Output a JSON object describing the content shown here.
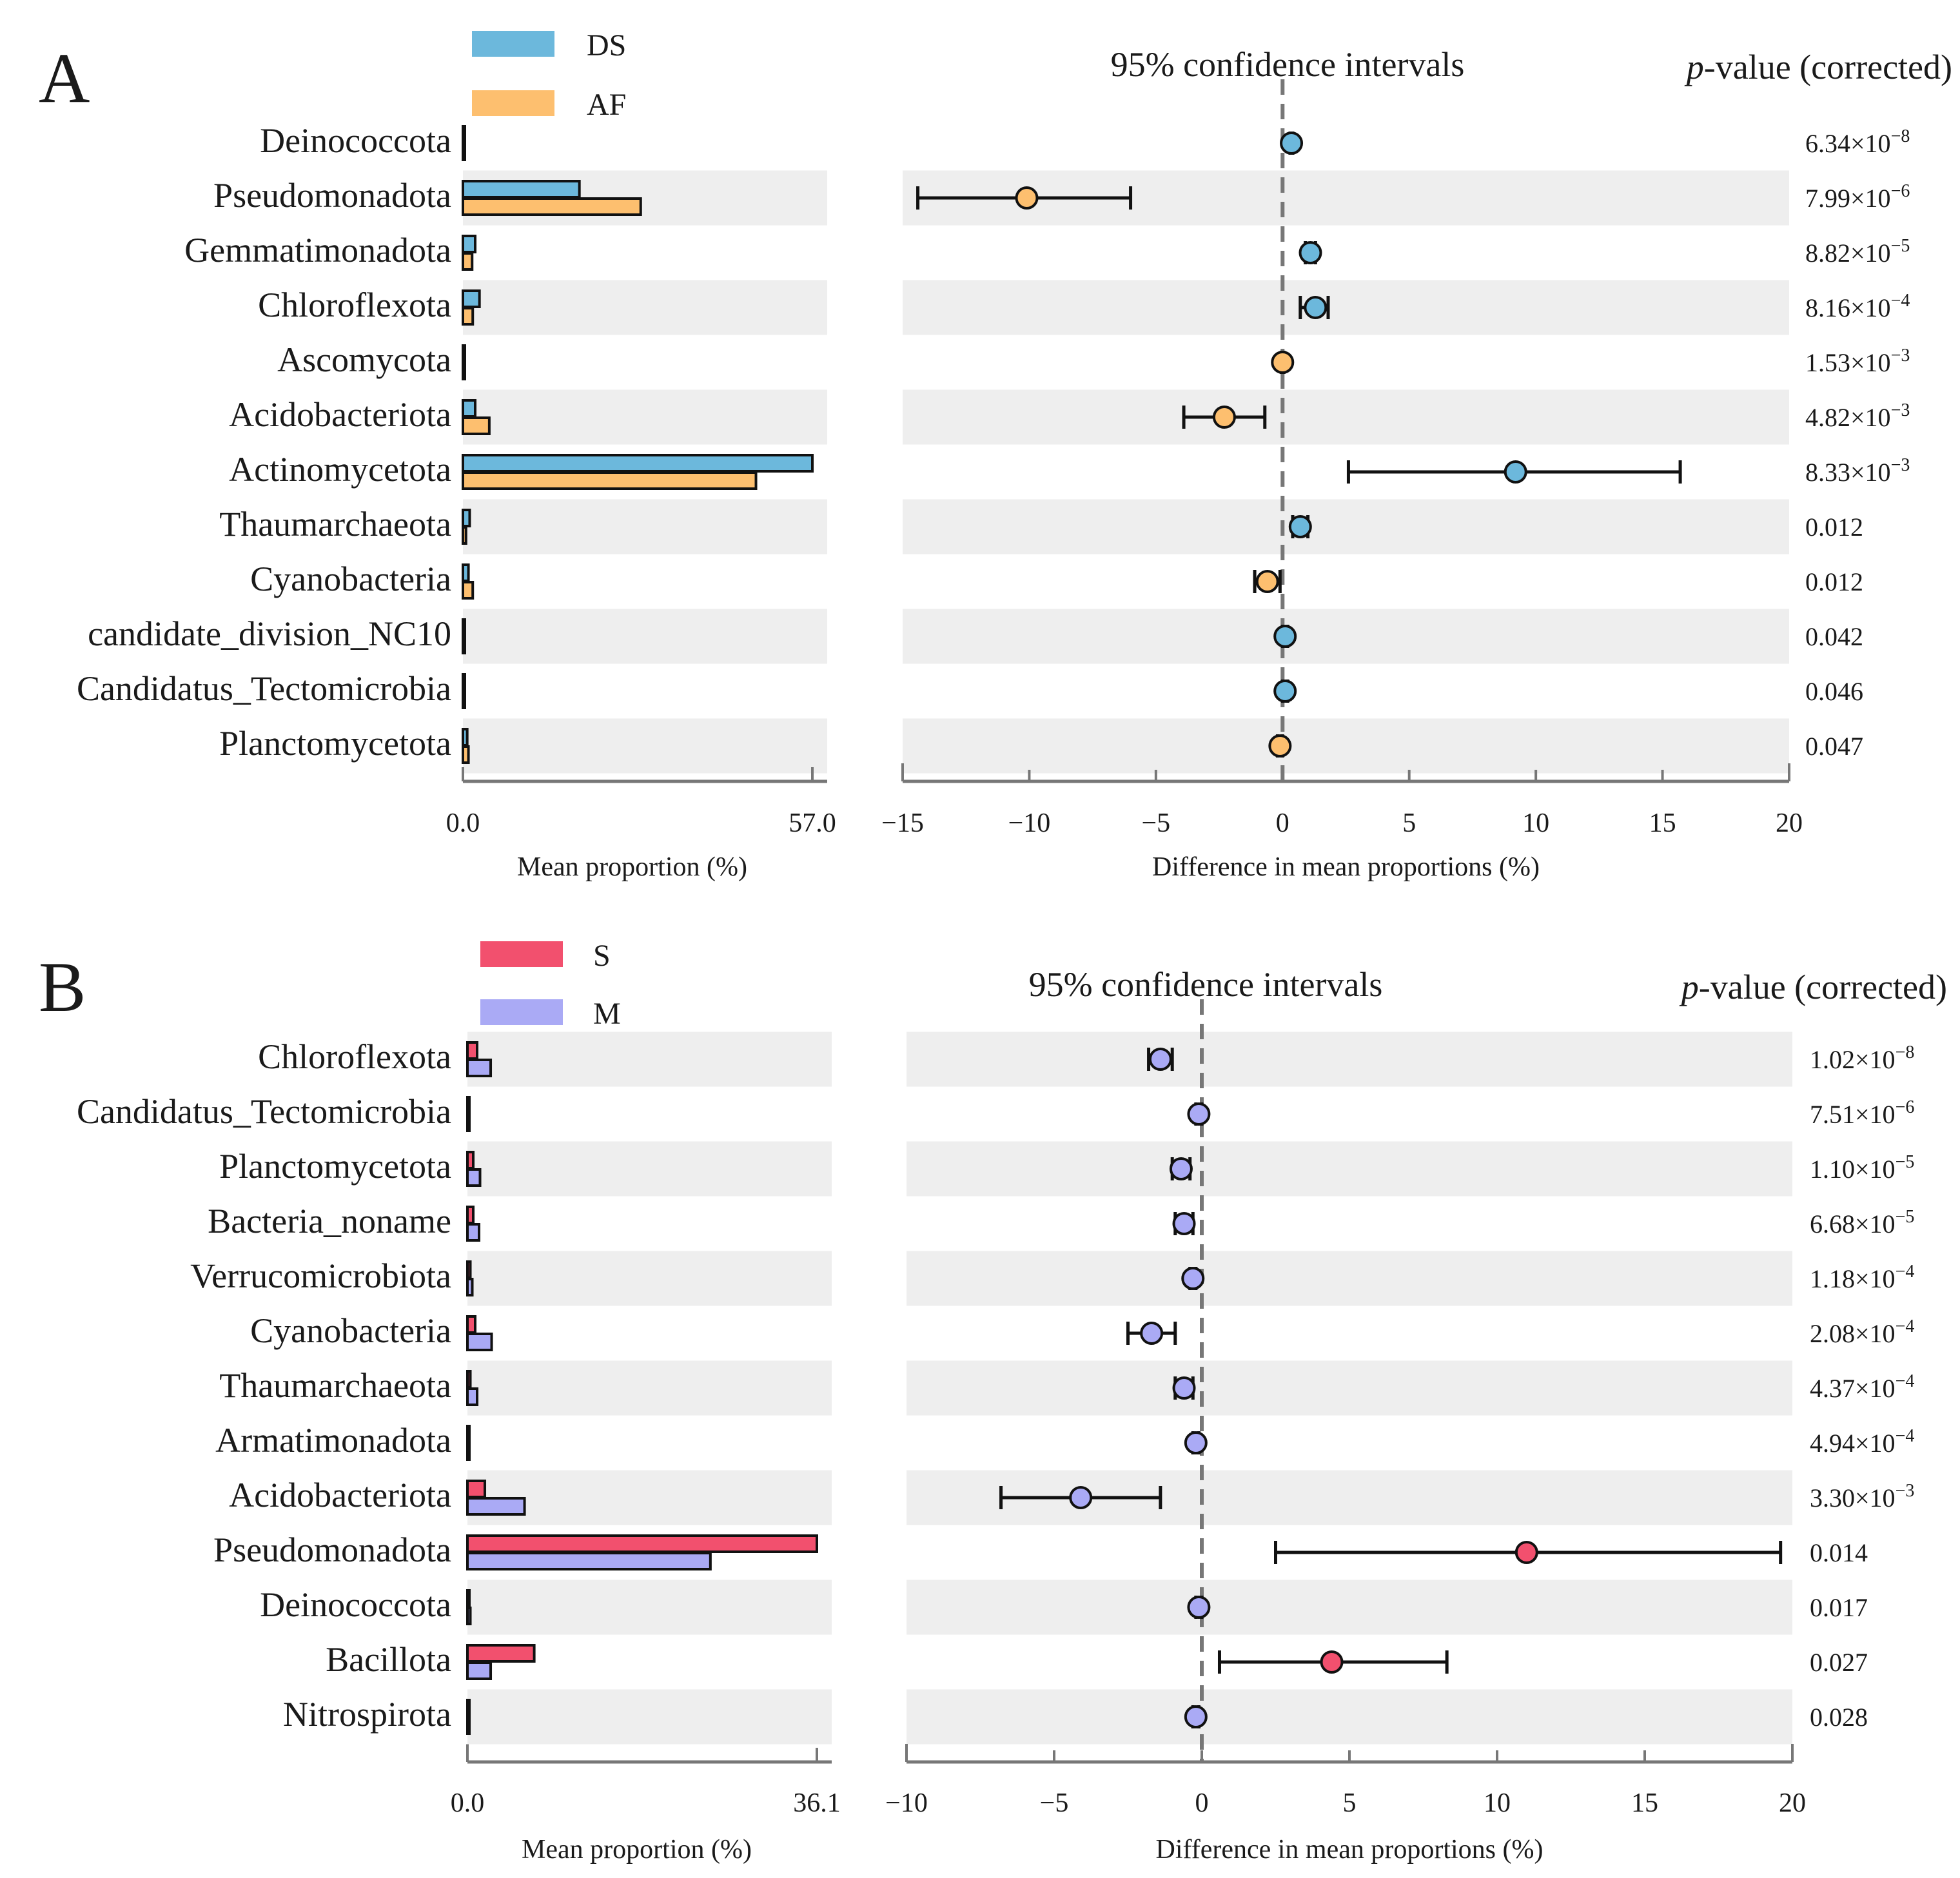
{
  "chart_data": [
    {
      "panel": "A",
      "type": "extended_error_bar",
      "groups": [
        {
          "name": "DS",
          "color": "#6CB8DC"
        },
        {
          "name": "AF",
          "color": "#FDBF6F"
        }
      ],
      "ci_title": "95% confidence intervals",
      "pvalue_title_italic": "p",
      "pvalue_title_rest": "-value (corrected)",
      "bar_axis": {
        "title": "Mean proportion (%)",
        "min": 0,
        "max": 57.0,
        "tick_labels": [
          "0.0",
          "57.0"
        ]
      },
      "diff_axis": {
        "title": "Difference in mean proportions (%)",
        "min": -15,
        "max": 20,
        "ticks": [
          -15,
          -10,
          -5,
          0,
          5,
          10,
          15,
          20
        ],
        "tick_labels": [
          "−15",
          "−10",
          "−5",
          "0",
          "5",
          "10",
          "15",
          "20"
        ]
      },
      "rows": [
        {
          "label": "Deinococcota",
          "shaded": false,
          "bars": [
            0.3,
            0.2
          ],
          "diff": 0.35,
          "ci": [
            0.3,
            0.4
          ],
          "point_group": 0,
          "pval_base": "6.34×10",
          "pval_exp": "−8"
        },
        {
          "label": "Pseudomonadota",
          "shaded": true,
          "bars": [
            19.0,
            29.0
          ],
          "diff": -10.1,
          "ci": [
            -14.4,
            -6.0
          ],
          "point_group": 1,
          "pval_base": "7.99×10",
          "pval_exp": "−6"
        },
        {
          "label": "Gemmatimonadota",
          "shaded": false,
          "bars": [
            2.0,
            1.5
          ],
          "diff": 1.1,
          "ci": [
            0.9,
            1.3
          ],
          "point_group": 0,
          "pval_base": "8.82×10",
          "pval_exp": "−5"
        },
        {
          "label": "Chloroflexota",
          "shaded": true,
          "bars": [
            2.7,
            1.6
          ],
          "diff": 1.3,
          "ci": [
            0.7,
            1.8
          ],
          "point_group": 0,
          "pval_base": "8.16×10",
          "pval_exp": "−4"
        },
        {
          "label": "Ascomycota",
          "shaded": false,
          "bars": [
            0.15,
            0.25
          ],
          "diff": 0.0,
          "ci": [
            -0.05,
            0.05
          ],
          "point_group": 1,
          "pval_base": "1.53×10",
          "pval_exp": "−3"
        },
        {
          "label": "Acidobacteriota",
          "shaded": true,
          "bars": [
            2.0,
            4.3
          ],
          "diff": -2.3,
          "ci": [
            -3.9,
            -0.7
          ],
          "point_group": 1,
          "pval_base": "4.82×10",
          "pval_exp": "−3"
        },
        {
          "label": "Actinomycetota",
          "shaded": false,
          "bars": [
            57.0,
            47.8
          ],
          "diff": 9.2,
          "ci": [
            2.6,
            15.7
          ],
          "point_group": 0,
          "pval_base": "8.33×10",
          "pval_exp": "−3"
        },
        {
          "label": "Thaumarchaeota",
          "shaded": true,
          "bars": [
            1.1,
            0.5
          ],
          "diff": 0.7,
          "ci": [
            0.4,
            1.0
          ],
          "point_group": 0,
          "pval_base": "0.012",
          "pval_exp": ""
        },
        {
          "label": "Cyanobacteria",
          "shaded": false,
          "bars": [
            0.9,
            1.6
          ],
          "diff": -0.6,
          "ci": [
            -1.1,
            -0.1
          ],
          "point_group": 1,
          "pval_base": "0.012",
          "pval_exp": ""
        },
        {
          "label": "candidate_division_NC10",
          "shaded": true,
          "bars": [
            0.2,
            0.1
          ],
          "diff": 0.1,
          "ci": [
            0.0,
            0.2
          ],
          "point_group": 0,
          "pval_base": "0.042",
          "pval_exp": ""
        },
        {
          "label": "Candidatus_Tectomicrobia",
          "shaded": false,
          "bars": [
            0.2,
            0.1
          ],
          "diff": 0.1,
          "ci": [
            0.0,
            0.2
          ],
          "point_group": 0,
          "pval_base": "0.046",
          "pval_exp": ""
        },
        {
          "label": "Planctomycetota",
          "shaded": true,
          "bars": [
            0.7,
            0.9
          ],
          "diff": -0.1,
          "ci": [
            -0.2,
            0.0
          ],
          "point_group": 1,
          "pval_base": "0.047",
          "pval_exp": ""
        }
      ]
    },
    {
      "panel": "B",
      "type": "extended_error_bar",
      "groups": [
        {
          "name": "S",
          "color": "#F2506E"
        },
        {
          "name": "M",
          "color": "#AAAAF5"
        }
      ],
      "ci_title": "95% confidence intervals",
      "pvalue_title_italic": "p",
      "pvalue_title_rest": "-value (corrected)",
      "bar_axis": {
        "title": "Mean proportion (%)",
        "min": 0,
        "max": 36.1,
        "tick_labels": [
          "0.0",
          "36.1"
        ]
      },
      "diff_axis": {
        "title": "Difference in mean proportions (%)",
        "min": -10,
        "max": 20,
        "ticks": [
          -10,
          -5,
          0,
          5,
          10,
          15,
          20
        ],
        "tick_labels": [
          "−10",
          "−5",
          "0",
          "5",
          "10",
          "15",
          "20"
        ]
      },
      "rows": [
        {
          "label": "Chloroflexota",
          "shaded": true,
          "bars": [
            1.0,
            2.4
          ],
          "diff": -1.4,
          "ci": [
            -1.8,
            -1.0
          ],
          "point_group": 1,
          "pval_base": "1.02×10",
          "pval_exp": "−8"
        },
        {
          "label": "Candidatus_Tectomicrobia",
          "shaded": false,
          "bars": [
            0.1,
            0.2
          ],
          "diff": -0.1,
          "ci": [
            -0.2,
            0.0
          ],
          "point_group": 1,
          "pval_base": "7.51×10",
          "pval_exp": "−6"
        },
        {
          "label": "Planctomycetota",
          "shaded": true,
          "bars": [
            0.6,
            1.3
          ],
          "diff": -0.7,
          "ci": [
            -1.0,
            -0.4
          ],
          "point_group": 1,
          "pval_base": "1.10×10",
          "pval_exp": "−5"
        },
        {
          "label": "Bacteria_noname",
          "shaded": false,
          "bars": [
            0.6,
            1.2
          ],
          "diff": -0.6,
          "ci": [
            -0.9,
            -0.3
          ],
          "point_group": 1,
          "pval_base": "6.68×10",
          "pval_exp": "−5"
        },
        {
          "label": "Verrucomicrobiota",
          "shaded": true,
          "bars": [
            0.3,
            0.5
          ],
          "diff": -0.3,
          "ci": [
            -0.4,
            -0.2
          ],
          "point_group": 1,
          "pval_base": "1.18×10",
          "pval_exp": "−4"
        },
        {
          "label": "Cyanobacteria",
          "shaded": false,
          "bars": [
            0.8,
            2.5
          ],
          "diff": -1.7,
          "ci": [
            -2.5,
            -0.9
          ],
          "point_group": 1,
          "pval_base": "2.08×10",
          "pval_exp": "−4"
        },
        {
          "label": "Thaumarchaeota",
          "shaded": true,
          "bars": [
            0.3,
            1.0
          ],
          "diff": -0.6,
          "ci": [
            -0.9,
            -0.3
          ],
          "point_group": 1,
          "pval_base": "4.37×10",
          "pval_exp": "−4"
        },
        {
          "label": "Armatimonadota",
          "shaded": false,
          "bars": [
            0.1,
            0.2
          ],
          "diff": -0.2,
          "ci": [
            -0.3,
            -0.1
          ],
          "point_group": 1,
          "pval_base": "4.94×10",
          "pval_exp": "−4"
        },
        {
          "label": "Acidobacteriota",
          "shaded": true,
          "bars": [
            1.8,
            5.9
          ],
          "diff": -4.1,
          "ci": [
            -6.8,
            -1.4
          ],
          "point_group": 1,
          "pval_base": "3.30×10",
          "pval_exp": "−3"
        },
        {
          "label": "Pseudomonadota",
          "shaded": false,
          "bars": [
            36.1,
            25.1
          ],
          "diff": 11.0,
          "ci": [
            2.5,
            19.6
          ],
          "point_group": 0,
          "pval_base": "0.014",
          "pval_exp": ""
        },
        {
          "label": "Deinococcota",
          "shaded": true,
          "bars": [
            0.2,
            0.3
          ],
          "diff": -0.1,
          "ci": [
            -0.2,
            0.0
          ],
          "point_group": 1,
          "pval_base": "0.017",
          "pval_exp": ""
        },
        {
          "label": "Bacillota",
          "shaded": false,
          "bars": [
            6.9,
            2.4
          ],
          "diff": 4.4,
          "ci": [
            0.6,
            8.3
          ],
          "point_group": 0,
          "pval_base": "0.027",
          "pval_exp": ""
        },
        {
          "label": "Nitrospirota",
          "shaded": true,
          "bars": [
            0.1,
            0.2
          ],
          "diff": -0.2,
          "ci": [
            -0.3,
            -0.1
          ],
          "point_group": 1,
          "pval_base": "0.028",
          "pval_exp": ""
        }
      ]
    }
  ]
}
